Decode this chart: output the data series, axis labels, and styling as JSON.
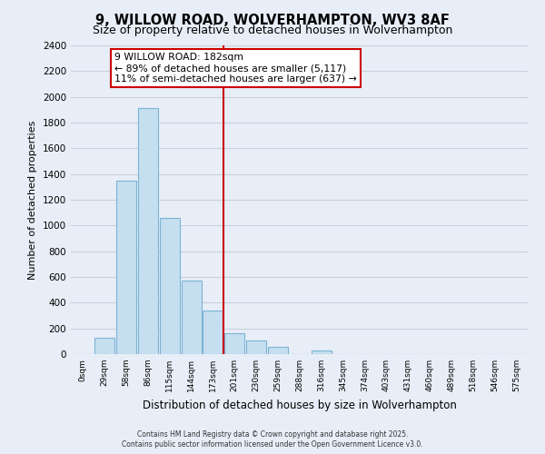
{
  "title": "9, WILLOW ROAD, WOLVERHAMPTON, WV3 8AF",
  "subtitle": "Size of property relative to detached houses in Wolverhampton",
  "xlabel": "Distribution of detached houses by size in Wolverhampton",
  "ylabel": "Number of detached properties",
  "bar_labels": [
    "0sqm",
    "29sqm",
    "58sqm",
    "86sqm",
    "115sqm",
    "144sqm",
    "173sqm",
    "201sqm",
    "230sqm",
    "259sqm",
    "288sqm",
    "316sqm",
    "345sqm",
    "374sqm",
    "403sqm",
    "431sqm",
    "460sqm",
    "489sqm",
    "518sqm",
    "546sqm",
    "575sqm"
  ],
  "bar_values": [
    0,
    125,
    1350,
    1910,
    1060,
    570,
    340,
    160,
    105,
    60,
    0,
    30,
    0,
    0,
    0,
    0,
    0,
    0,
    0,
    0,
    0
  ],
  "bar_color": "#c6dff0",
  "bar_edge_color": "#7ab3d4",
  "vline_color": "#cc0000",
  "annotation_title": "9 WILLOW ROAD: 182sqm",
  "annotation_line1": "← 89% of detached houses are smaller (5,117)",
  "annotation_line2": "11% of semi-detached houses are larger (637) →",
  "annotation_box_color": "white",
  "annotation_box_edge": "#cc0000",
  "ylim": [
    0,
    2400
  ],
  "yticks": [
    0,
    200,
    400,
    600,
    800,
    1000,
    1200,
    1400,
    1600,
    1800,
    2000,
    2200,
    2400
  ],
  "footer1": "Contains HM Land Registry data © Crown copyright and database right 2025.",
  "footer2": "Contains public sector information licensed under the Open Government Licence v3.0.",
  "bg_color": "#e8eef7",
  "grid_color": "#c8d0dc",
  "title_fontsize": 10.5,
  "subtitle_fontsize": 9
}
